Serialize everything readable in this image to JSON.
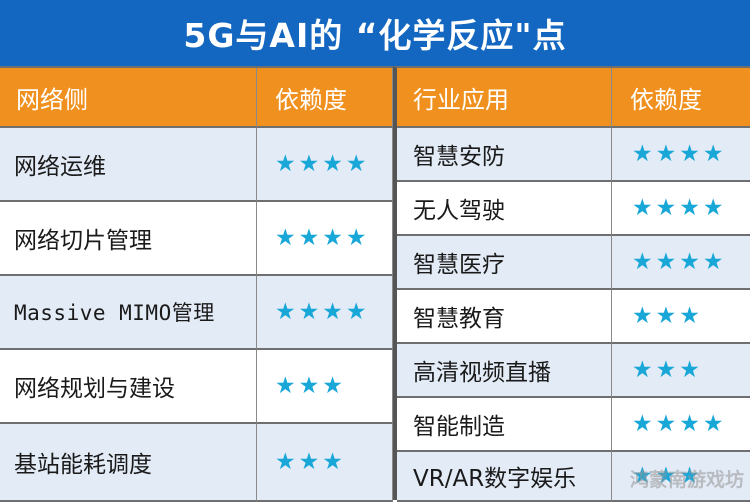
{
  "title": "5G与AI的 “化学反应\"点",
  "star_color": "#19a7d8",
  "header_color": "#f0901e",
  "title_color": "#1467c0",
  "left_table": {
    "headers": {
      "name": "网络侧",
      "dependency": "依赖度"
    },
    "rows": [
      {
        "name": "网络运维",
        "stars": "★★★★",
        "rating": 4
      },
      {
        "name": "网络切片管理",
        "stars": "★★★★",
        "rating": 4
      },
      {
        "name": "Massive MIMO管理",
        "stars": "★★★★",
        "rating": 4
      },
      {
        "name": "网络规划与建设",
        "stars": "★★★",
        "rating": 3
      },
      {
        "name": "基站能耗调度",
        "stars": "★★★",
        "rating": 3
      }
    ]
  },
  "right_table": {
    "headers": {
      "name": "行业应用",
      "dependency": "依赖度"
    },
    "rows": [
      {
        "name": "智慧安防",
        "stars": "★★★★",
        "rating": 4
      },
      {
        "name": "无人驾驶",
        "stars": "★★★★",
        "rating": 4
      },
      {
        "name": "智慧医疗",
        "stars": "★★★★",
        "rating": 4
      },
      {
        "name": "智慧教育",
        "stars": "★★★",
        "rating": 3
      },
      {
        "name": "高清视频直播",
        "stars": "★★★",
        "rating": 3
      },
      {
        "name": "智能制造",
        "stars": "★★★★",
        "rating": 4
      },
      {
        "name": "VR/AR数字娱乐",
        "stars": "★★★",
        "rating": 3
      }
    ]
  },
  "watermark": "鸿蒙南游戏坊"
}
